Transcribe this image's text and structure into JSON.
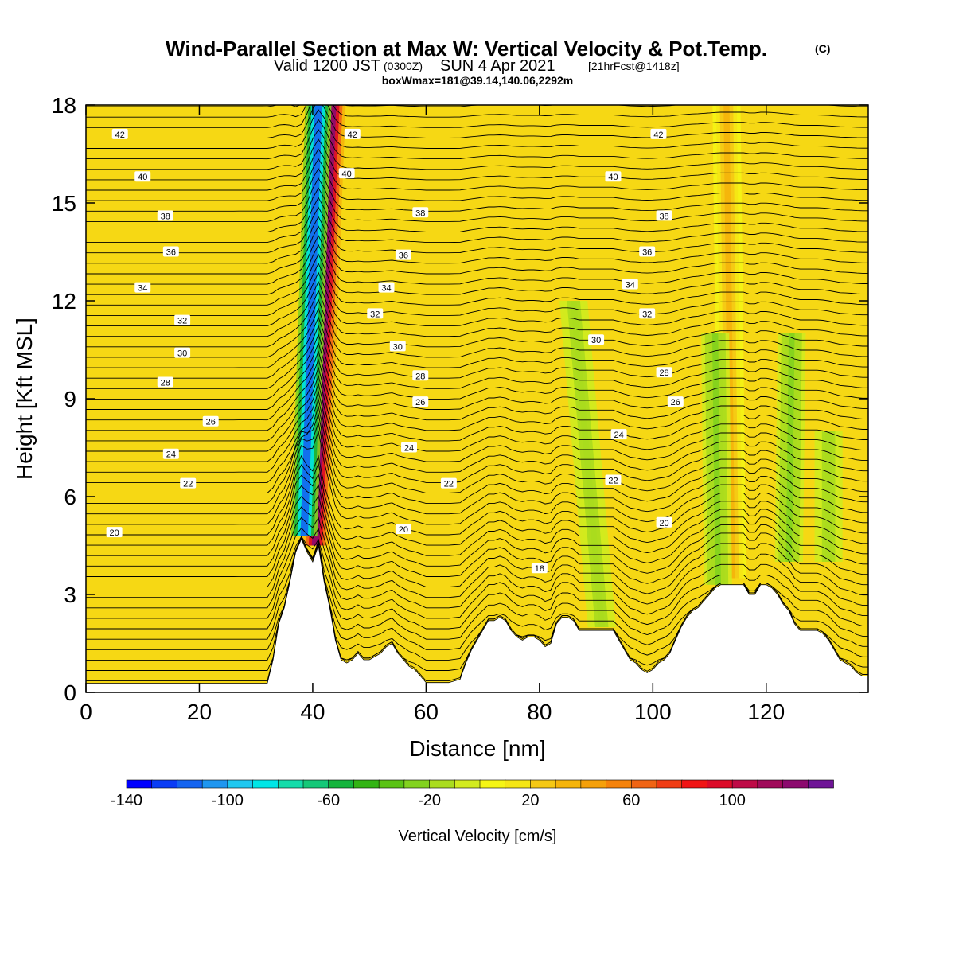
{
  "header": {
    "title": "Wind-Parallel Section at Max W: Vertical Velocity & Pot.Temp.",
    "copyright": "(C)",
    "valid_prefix": "Valid 1200 JST",
    "zulu": "(0300Z)",
    "valid_date": "SUN 4 Apr 2021",
    "forecast": "[21hrFcst@1418z]",
    "boxwmax": "boxWmax=181@39.14,140.06,2292m"
  },
  "chart_data": {
    "type": "heatmap",
    "title": "Wind-Parallel Section at Max W: Vertical Velocity & Pot.Temp.",
    "xlabel": "Distance [nm]",
    "ylabel": "Height [Kft MSL]",
    "xlim": [
      0,
      138
    ],
    "ylim": [
      0,
      18
    ],
    "x_ticks": [
      "0",
      "20",
      "40",
      "60",
      "80",
      "100",
      "120"
    ],
    "y_ticks": [
      "0",
      "3",
      "6",
      "9",
      "12",
      "15",
      "18"
    ],
    "grid": false,
    "colorbar": {
      "label": "Vertical Velocity [cm/s]",
      "min": -140,
      "max": 140,
      "step": 10,
      "tick_labels": [
        "-140",
        "-100",
        "-60",
        "-20",
        "20",
        "60",
        "100"
      ],
      "colors": [
        "#0000ff",
        "#0a3cf5",
        "#1464f0",
        "#1e96f0",
        "#1ec8f0",
        "#00e6e6",
        "#14dcaa",
        "#14c878",
        "#14b43c",
        "#32b414",
        "#5ac314",
        "#82d21e",
        "#aadc1e",
        "#d2eb1e",
        "#f5f514",
        "#f5e614",
        "#f5c814",
        "#f5b40a",
        "#f5a00a",
        "#f5820a",
        "#f06414",
        "#f03c14",
        "#f01414",
        "#dc0a28",
        "#be0a46",
        "#a00a5a",
        "#8c0a6e",
        "#6e1496"
      ]
    },
    "terrain_kft": [
      [
        0,
        0.28
      ],
      [
        2,
        0.28
      ],
      [
        4,
        0.28
      ],
      [
        6,
        0.28
      ],
      [
        8,
        0.28
      ],
      [
        10,
        0.28
      ],
      [
        12,
        0.28
      ],
      [
        14,
        0.28
      ],
      [
        16,
        0.28
      ],
      [
        18,
        0.28
      ],
      [
        20,
        0.28
      ],
      [
        22,
        0.28
      ],
      [
        24,
        0.28
      ],
      [
        26,
        0.28
      ],
      [
        28,
        0.28
      ],
      [
        30,
        0.28
      ],
      [
        32,
        0.28
      ],
      [
        33,
        1.0
      ],
      [
        34,
        2.1
      ],
      [
        35,
        2.6
      ],
      [
        36,
        3.4
      ],
      [
        37,
        4.3
      ],
      [
        38,
        4.7
      ],
      [
        39,
        4.3
      ],
      [
        40,
        4.0
      ],
      [
        41,
        4.5
      ],
      [
        42,
        3.4
      ],
      [
        43,
        2.6
      ],
      [
        44,
        1.6
      ],
      [
        45,
        1.0
      ],
      [
        46,
        0.9
      ],
      [
        47,
        1.0
      ],
      [
        48,
        1.2
      ],
      [
        49,
        1.0
      ],
      [
        50,
        1.0
      ],
      [
        51,
        1.1
      ],
      [
        52,
        1.2
      ],
      [
        53,
        1.4
      ],
      [
        54,
        1.5
      ],
      [
        55,
        1.2
      ],
      [
        56,
        1.0
      ],
      [
        57,
        0.8
      ],
      [
        58,
        0.7
      ],
      [
        59,
        0.5
      ],
      [
        60,
        0.3
      ],
      [
        62,
        0.3
      ],
      [
        64,
        0.3
      ],
      [
        66,
        0.4
      ],
      [
        67,
        0.9
      ],
      [
        68,
        1.3
      ],
      [
        69,
        1.6
      ],
      [
        70,
        1.9
      ],
      [
        71,
        2.2
      ],
      [
        72,
        2.2
      ],
      [
        73,
        2.3
      ],
      [
        74,
        2.2
      ],
      [
        75,
        1.9
      ],
      [
        76,
        1.7
      ],
      [
        77,
        1.6
      ],
      [
        78,
        1.7
      ],
      [
        79,
        1.7
      ],
      [
        80,
        1.6
      ],
      [
        81,
        1.4
      ],
      [
        82,
        1.5
      ],
      [
        83,
        2.1
      ],
      [
        84,
        2.3
      ],
      [
        85,
        2.3
      ],
      [
        86,
        2.2
      ],
      [
        87,
        1.9
      ],
      [
        88,
        1.9
      ],
      [
        89,
        1.9
      ],
      [
        90,
        1.9
      ],
      [
        91,
        1.9
      ],
      [
        92,
        1.9
      ],
      [
        93,
        1.9
      ],
      [
        94,
        1.6
      ],
      [
        95,
        1.3
      ],
      [
        96,
        1.0
      ],
      [
        97,
        0.9
      ],
      [
        98,
        0.7
      ],
      [
        99,
        0.6
      ],
      [
        100,
        0.7
      ],
      [
        101,
        0.9
      ],
      [
        102,
        1.0
      ],
      [
        103,
        1.2
      ],
      [
        104,
        1.6
      ],
      [
        105,
        2.0
      ],
      [
        106,
        2.3
      ],
      [
        107,
        2.5
      ],
      [
        108,
        2.6
      ],
      [
        109,
        2.8
      ],
      [
        110,
        3.0
      ],
      [
        111,
        3.2
      ],
      [
        112,
        3.3
      ],
      [
        113,
        3.3
      ],
      [
        114,
        3.3
      ],
      [
        115,
        3.3
      ],
      [
        116,
        3.3
      ],
      [
        117,
        3.0
      ],
      [
        118,
        3.0
      ],
      [
        119,
        3.3
      ],
      [
        120,
        3.3
      ],
      [
        121,
        3.2
      ],
      [
        122,
        3.0
      ],
      [
        123,
        2.7
      ],
      [
        124,
        2.5
      ],
      [
        125,
        2.1
      ],
      [
        126,
        1.9
      ],
      [
        127,
        1.9
      ],
      [
        128,
        1.9
      ],
      [
        129,
        1.9
      ],
      [
        130,
        1.8
      ],
      [
        131,
        1.6
      ],
      [
        132,
        1.3
      ],
      [
        133,
        1.0
      ],
      [
        134,
        0.9
      ],
      [
        135,
        0.8
      ],
      [
        136,
        0.6
      ],
      [
        137,
        0.5
      ],
      [
        138,
        0.5
      ]
    ],
    "velocity_features": [
      {
        "kind": "updraft",
        "x_bottom": 40.5,
        "x_top": 43.5,
        "y_bottom": 4.5,
        "y_top": 18,
        "value": 120
      },
      {
        "kind": "downdraft",
        "x_bottom": 38.5,
        "x_top": 41.0,
        "y_bottom": 4.8,
        "y_top": 18,
        "value": -120
      },
      {
        "kind": "updraft",
        "x_bottom": 114,
        "x_top": 113,
        "y_bottom": 3.5,
        "y_top": 18,
        "value": 30
      },
      {
        "kind": "downdraft",
        "x_bottom": 111.5,
        "x_top": 111,
        "y_bottom": 3.3,
        "y_top": 11,
        "value": -25
      },
      {
        "kind": "downdraft",
        "x_bottom": 124,
        "x_top": 124.5,
        "y_bottom": 4,
        "y_top": 11,
        "value": -25
      },
      {
        "kind": "downdraft",
        "x_bottom": 91,
        "x_top": 86,
        "y_bottom": 2,
        "y_top": 12,
        "value": -20
      },
      {
        "kind": "downdraft",
        "x_bottom": 131,
        "x_top": 131,
        "y_bottom": 4,
        "y_top": 8,
        "value": -15
      }
    ],
    "isentrope_labels": [
      {
        "x": 6,
        "y": 17.1,
        "text": "42"
      },
      {
        "x": 10,
        "y": 15.8,
        "text": "40"
      },
      {
        "x": 14,
        "y": 14.6,
        "text": "38"
      },
      {
        "x": 15,
        "y": 13.5,
        "text": "36"
      },
      {
        "x": 10,
        "y": 12.4,
        "text": "34"
      },
      {
        "x": 17,
        "y": 11.4,
        "text": "32"
      },
      {
        "x": 17,
        "y": 10.4,
        "text": "30"
      },
      {
        "x": 14,
        "y": 9.5,
        "text": "28"
      },
      {
        "x": 22,
        "y": 8.3,
        "text": "26"
      },
      {
        "x": 15,
        "y": 7.3,
        "text": "24"
      },
      {
        "x": 18,
        "y": 6.4,
        "text": "22"
      },
      {
        "x": 5,
        "y": 4.9,
        "text": "20"
      },
      {
        "x": 47,
        "y": 17.1,
        "text": "42"
      },
      {
        "x": 46,
        "y": 15.9,
        "text": "40"
      },
      {
        "x": 59,
        "y": 14.7,
        "text": "38"
      },
      {
        "x": 56,
        "y": 13.4,
        "text": "36"
      },
      {
        "x": 53,
        "y": 12.4,
        "text": "34"
      },
      {
        "x": 51,
        "y": 11.6,
        "text": "32"
      },
      {
        "x": 55,
        "y": 10.6,
        "text": "30"
      },
      {
        "x": 59,
        "y": 9.7,
        "text": "28"
      },
      {
        "x": 59,
        "y": 8.9,
        "text": "26"
      },
      {
        "x": 57,
        "y": 7.5,
        "text": "24"
      },
      {
        "x": 64,
        "y": 6.4,
        "text": "22"
      },
      {
        "x": 56,
        "y": 5.0,
        "text": "20"
      },
      {
        "x": 80,
        "y": 3.8,
        "text": "18"
      },
      {
        "x": 101,
        "y": 17.1,
        "text": "42"
      },
      {
        "x": 93,
        "y": 15.8,
        "text": "40"
      },
      {
        "x": 102,
        "y": 14.6,
        "text": "38"
      },
      {
        "x": 99,
        "y": 13.5,
        "text": "36"
      },
      {
        "x": 96,
        "y": 12.5,
        "text": "34"
      },
      {
        "x": 99,
        "y": 11.6,
        "text": "32"
      },
      {
        "x": 90,
        "y": 10.8,
        "text": "30"
      },
      {
        "x": 102,
        "y": 9.8,
        "text": "28"
      },
      {
        "x": 104,
        "y": 8.9,
        "text": "26"
      },
      {
        "x": 94,
        "y": 7.9,
        "text": "24"
      },
      {
        "x": 93,
        "y": 6.5,
        "text": "22"
      },
      {
        "x": 102,
        "y": 5.2,
        "text": "20"
      }
    ]
  }
}
